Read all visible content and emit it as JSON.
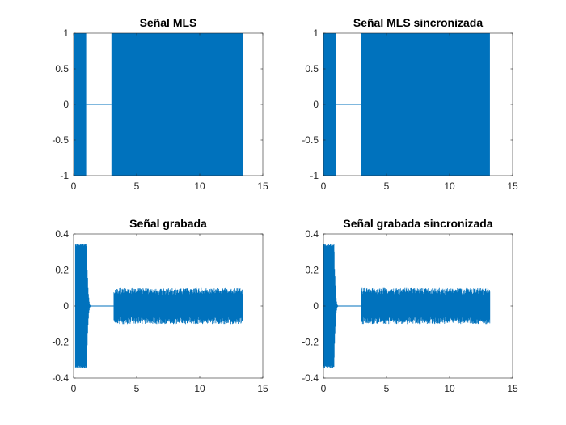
{
  "figure": {
    "background": "#ffffff",
    "signal_color": "#0072bd",
    "axes_color": "#262626"
  },
  "chart_data": [
    {
      "type": "line",
      "title": "Señal MLS",
      "xlabel": "",
      "ylabel": "",
      "xlim": [
        0,
        15
      ],
      "ylim": [
        -1,
        1
      ],
      "xticks": [
        0,
        5,
        10,
        15
      ],
      "yticks": [
        -1,
        -0.5,
        0,
        0.5,
        1
      ],
      "xtick_labels": [
        "0",
        "5",
        "10",
        "15"
      ],
      "ytick_labels": [
        "-1",
        "-0.5",
        "0",
        "0.5",
        "1"
      ],
      "grid": false,
      "segments": [
        {
          "x_start": 0.0,
          "x_end": 1.0,
          "y_min": -1,
          "y_max": 1,
          "kind": "noise"
        },
        {
          "x_start": 1.0,
          "x_end": 3.0,
          "y_min": 0,
          "y_max": 0,
          "kind": "silence"
        },
        {
          "x_start": 3.0,
          "x_end": 13.4,
          "y_min": -1,
          "y_max": 1,
          "kind": "noise"
        }
      ]
    },
    {
      "type": "line",
      "title": "Señal MLS sincronizada",
      "xlabel": "",
      "ylabel": "",
      "xlim": [
        0,
        15
      ],
      "ylim": [
        -1,
        1
      ],
      "xticks": [
        0,
        5,
        10,
        15
      ],
      "yticks": [
        -1,
        -0.5,
        0,
        0.5,
        1
      ],
      "xtick_labels": [
        "0",
        "5",
        "10",
        "15"
      ],
      "ytick_labels": [
        "-1",
        "-0.5",
        "0",
        "0.5",
        "1"
      ],
      "grid": false,
      "segments": [
        {
          "x_start": 0.0,
          "x_end": 1.0,
          "y_min": -1,
          "y_max": 1,
          "kind": "noise"
        },
        {
          "x_start": 1.0,
          "x_end": 3.0,
          "y_min": 0,
          "y_max": 0,
          "kind": "silence"
        },
        {
          "x_start": 3.0,
          "x_end": 13.2,
          "y_min": -1,
          "y_max": 1,
          "kind": "noise"
        }
      ]
    },
    {
      "type": "line",
      "title": "Señal grabada",
      "xlabel": "",
      "ylabel": "",
      "xlim": [
        0,
        15
      ],
      "ylim": [
        -0.4,
        0.4
      ],
      "xticks": [
        0,
        5,
        10,
        15
      ],
      "yticks": [
        -0.4,
        -0.2,
        0,
        0.2,
        0.4
      ],
      "xtick_labels": [
        "0",
        "5",
        "10",
        "15"
      ],
      "ytick_labels": [
        "-0.4",
        "-0.2",
        "0",
        "0.2",
        "0.4"
      ],
      "grid": false,
      "segments": [
        {
          "x_start": 0.15,
          "x_end": 1.05,
          "y_min": -0.345,
          "y_max": 0.345,
          "kind": "noise"
        },
        {
          "x_start": 1.05,
          "x_end": 1.35,
          "y_min": -0.3,
          "y_max": 0.3,
          "kind": "decay"
        },
        {
          "x_start": 1.35,
          "x_end": 3.2,
          "y_min": -0.003,
          "y_max": 0.003,
          "kind": "silence"
        },
        {
          "x_start": 3.2,
          "x_end": 13.4,
          "y_min": -0.1,
          "y_max": 0.1,
          "kind": "noise"
        }
      ]
    },
    {
      "type": "line",
      "title": "Señal grabada sincronizada",
      "xlabel": "",
      "ylabel": "",
      "xlim": [
        0,
        15
      ],
      "ylim": [
        -0.4,
        0.4
      ],
      "xticks": [
        0,
        5,
        10,
        15
      ],
      "yticks": [
        -0.4,
        -0.2,
        0,
        0.2,
        0.4
      ],
      "xtick_labels": [
        "0",
        "5",
        "10",
        "15"
      ],
      "ytick_labels": [
        "-0.4",
        "-0.2",
        "0",
        "0.2",
        "0.4"
      ],
      "grid": false,
      "segments": [
        {
          "x_start": 0.0,
          "x_end": 0.85,
          "y_min": -0.345,
          "y_max": 0.345,
          "kind": "noise"
        },
        {
          "x_start": 0.85,
          "x_end": 1.15,
          "y_min": -0.3,
          "y_max": 0.3,
          "kind": "decay"
        },
        {
          "x_start": 1.15,
          "x_end": 3.0,
          "y_min": -0.003,
          "y_max": 0.003,
          "kind": "silence"
        },
        {
          "x_start": 3.0,
          "x_end": 13.2,
          "y_min": -0.1,
          "y_max": 0.1,
          "kind": "noise"
        }
      ]
    }
  ]
}
